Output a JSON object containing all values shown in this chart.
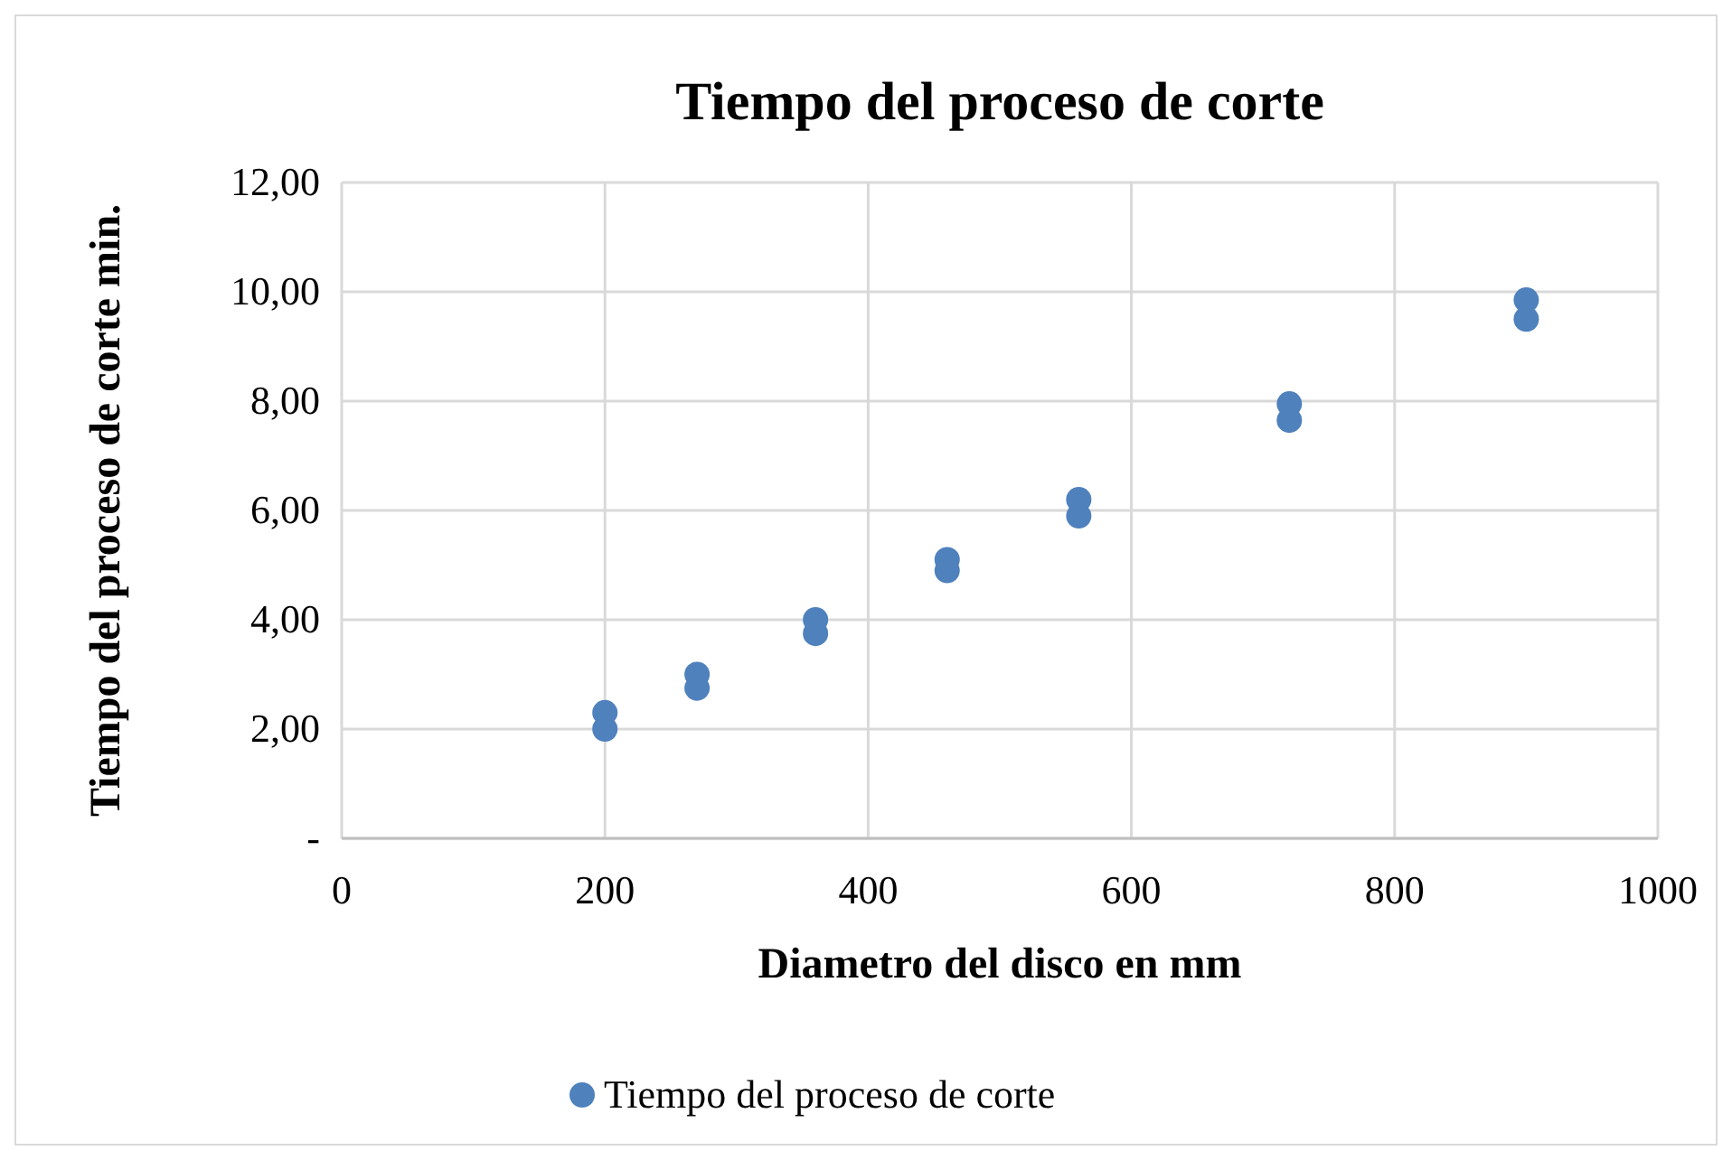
{
  "chart_data": {
    "type": "scatter",
    "title": "Tiempo del proceso de corte",
    "xlabel": "Diametro del disco en mm",
    "ylabel": "Tiempo del proceso de corte min.",
    "x": [
      200,
      200,
      270,
      270,
      360,
      360,
      460,
      460,
      560,
      560,
      720,
      720,
      900,
      900
    ],
    "series": [
      {
        "name": "Tiempo del proceso de corte",
        "color": "#4f81bd",
        "values": [
          2.0,
          2.3,
          2.75,
          3.0,
          3.75,
          4.0,
          4.9,
          5.1,
          5.9,
          6.2,
          7.65,
          7.95,
          9.5,
          9.85
        ]
      }
    ],
    "xlim": [
      0,
      1000
    ],
    "xticks": [
      0,
      200,
      400,
      600,
      800,
      1000
    ],
    "ylim": [
      0,
      12
    ],
    "yticks": [
      {
        "value": 0,
        "label": "-"
      },
      {
        "value": 2,
        "label": "2,00"
      },
      {
        "value": 4,
        "label": "4,00"
      },
      {
        "value": 6,
        "label": "6,00"
      },
      {
        "value": 8,
        "label": "8,00"
      },
      {
        "value": 10,
        "label": "10,00"
      },
      {
        "value": 12,
        "label": "12,00"
      }
    ],
    "grid": true,
    "legend": "bottom",
    "marker": "circle"
  }
}
